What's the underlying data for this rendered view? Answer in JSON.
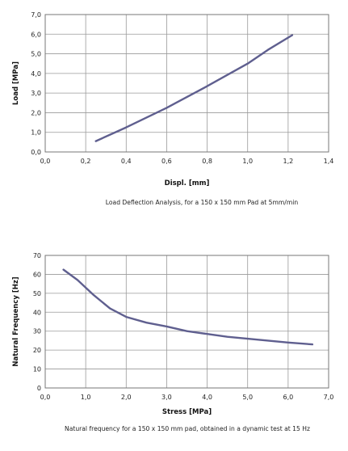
{
  "chart_data": [
    {
      "type": "line",
      "xlabel": "Displ. [mm]",
      "ylabel": "Load [MPa]",
      "caption": "Load Deflection Analysis, for a 150 x 150 mm Pad at 5mm/min",
      "xlim": [
        0,
        1.4
      ],
      "ylim": [
        0,
        7
      ],
      "x_ticks": [
        "0,0",
        "0,2",
        "0,4",
        "0,6",
        "0,8",
        "1,0",
        "1,2",
        "1,4"
      ],
      "y_ticks": [
        "0,0",
        "1,0",
        "2,0",
        "3,0",
        "4,0",
        "5,0",
        "6,0",
        "7,0"
      ],
      "grid": true,
      "series": [
        {
          "color": "#5f5f8f",
          "x": [
            0.25,
            0.4,
            0.6,
            0.8,
            1.0,
            1.1,
            1.22
          ],
          "y": [
            0.55,
            1.25,
            2.25,
            3.35,
            4.5,
            5.2,
            5.95
          ]
        }
      ]
    },
    {
      "type": "line",
      "xlabel": "Stress [MPa]",
      "ylabel": "Natural Frequency [Hz]",
      "caption": "Natural frequency for a 150 x 150 mm pad,  obtained in a dynamic test at 15 Hz",
      "xlim": [
        0,
        7
      ],
      "ylim": [
        0,
        70
      ],
      "x_ticks": [
        "0,0",
        "1,0",
        "2,0",
        "3,0",
        "4,0",
        "5,0",
        "6,0",
        "7,0"
      ],
      "y_ticks": [
        "0",
        "10",
        "20",
        "30",
        "40",
        "50",
        "60",
        "70"
      ],
      "grid": true,
      "series": [
        {
          "color": "#5f5f8f",
          "x": [
            0.45,
            0.8,
            1.2,
            1.6,
            2.0,
            2.5,
            3.0,
            3.5,
            4.0,
            4.5,
            5.0,
            5.5,
            6.0,
            6.6
          ],
          "y": [
            62.5,
            57,
            49,
            42,
            37.5,
            34.5,
            32.5,
            30,
            28.5,
            27,
            26,
            25,
            24,
            23
          ]
        }
      ]
    }
  ]
}
